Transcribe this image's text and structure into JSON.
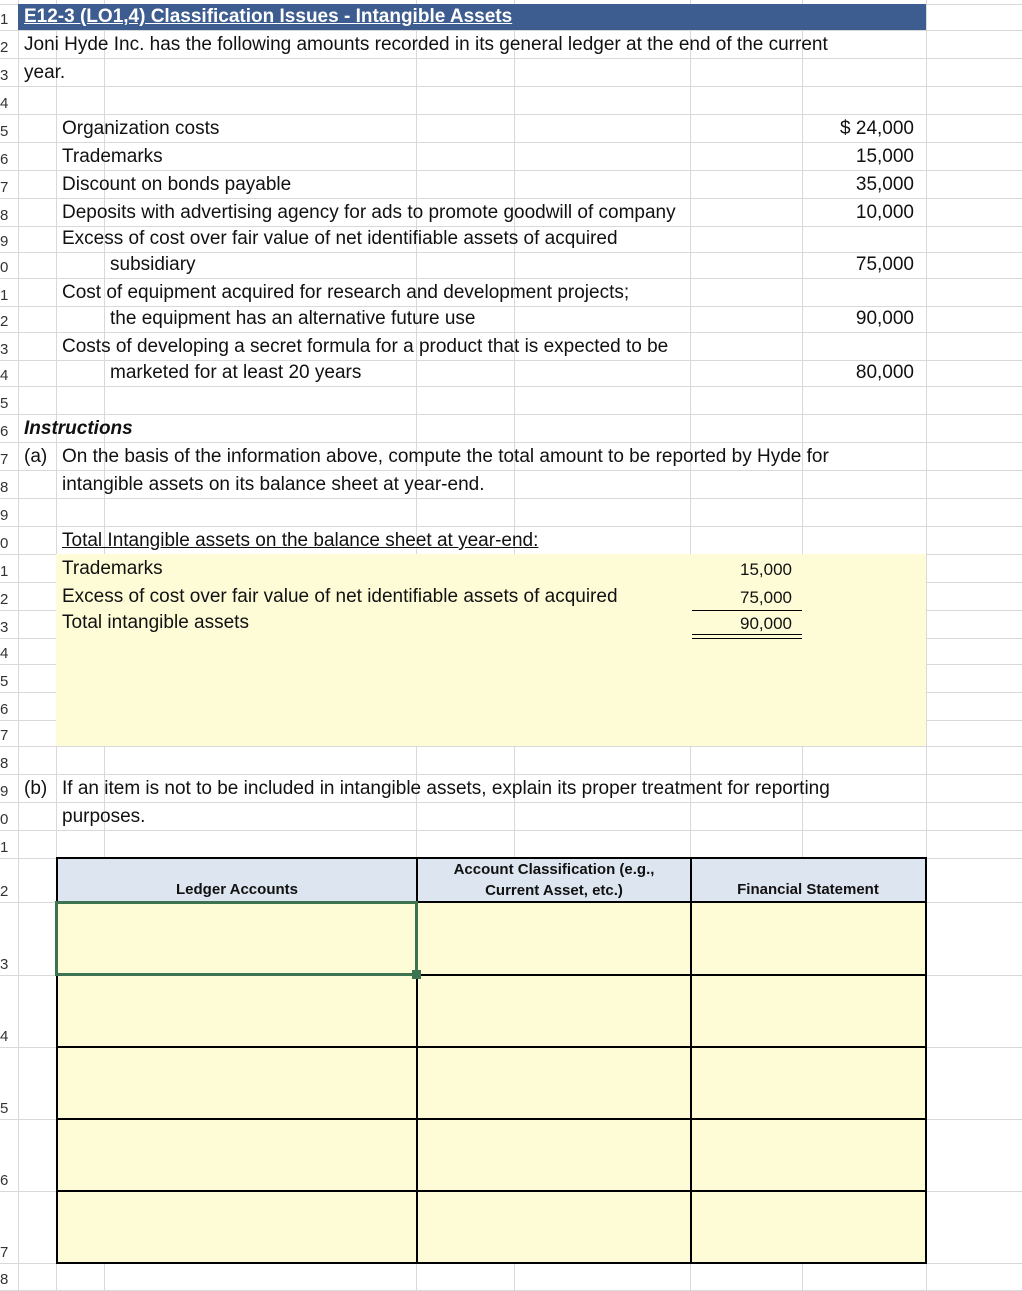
{
  "title": "E12-3  (LO1,4) Classification Issues - Intangible Assets ",
  "intro": [
    "Joni Hyde Inc. has the following amounts recorded in its general ledger at the end of the current",
    "year."
  ],
  "ledger": [
    {
      "lines": [
        "Organization costs"
      ],
      "amount": "$  24,000"
    },
    {
      "lines": [
        "Trademarks"
      ],
      "amount": "15,000"
    },
    {
      "lines": [
        "Discount on bonds payable"
      ],
      "amount": "35,000"
    },
    {
      "lines": [
        "Deposits with advertising agency for ads to promote goodwill of company"
      ],
      "amount": "10,000"
    },
    {
      "lines": [
        "Excess of cost over fair value of net identifiable assets of acquired",
        "subsidiary"
      ],
      "amount": "75,000"
    },
    {
      "lines": [
        "Cost of equipment acquired for research and development projects;",
        "the equipment has an alternative future use"
      ],
      "amount": "90,000"
    },
    {
      "lines": [
        "Costs of developing a secret formula for a product that is expected to be",
        "marketed for at least 20 years"
      ],
      "amount": "80,000"
    }
  ],
  "instructions": {
    "heading": "Instructions",
    "a_label": "(a)",
    "a_text": [
      "On the basis of the information above, compute the total amount to be reported by Hyde for",
      "intangible assets on its balance sheet at year-end."
    ],
    "b_label": "(b)",
    "b_text": [
      "If an item is not to be included in intangible assets, explain its proper treatment for reporting",
      "purposes."
    ]
  },
  "answer_a": {
    "heading": "Total Intangible assets on the balance sheet at year-end:",
    "rows": [
      {
        "label": "Trademarks",
        "value": "15,000"
      },
      {
        "label": "Excess of cost over fair value of net identifiable assets of acquired",
        "value": "75,000"
      },
      {
        "label": "Total intangible assets",
        "value": "90,000"
      }
    ]
  },
  "table_b": {
    "headers": [
      "Ledger Accounts",
      "Account Classification (e.g., Current Asset, etc.)",
      "Financial Statement"
    ],
    "rows": [
      [
        "",
        "",
        ""
      ],
      [
        "",
        "",
        ""
      ],
      [
        "",
        "",
        ""
      ],
      [
        "",
        "",
        ""
      ],
      [
        "",
        "",
        ""
      ]
    ]
  },
  "colors": {
    "title_bg": "#3d5c8f",
    "input_fill": "#fefcd7",
    "header_fill": "#dde5f0",
    "selection": "#3d7350"
  }
}
